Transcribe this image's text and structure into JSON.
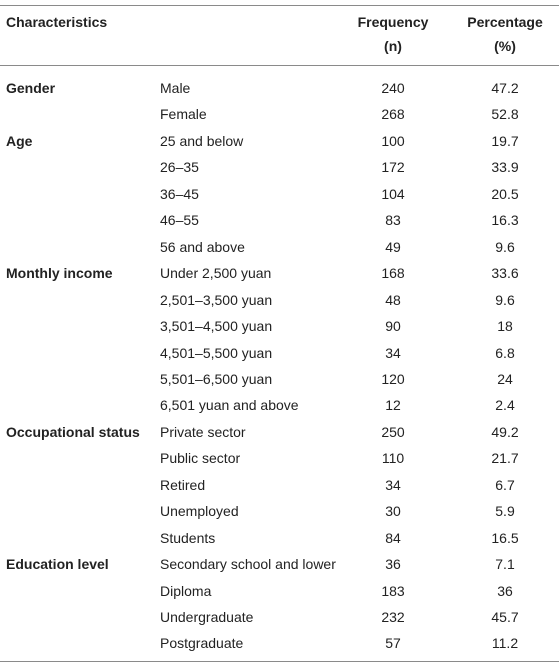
{
  "table": {
    "header": {
      "characteristics": "Characteristics",
      "frequency": [
        "Frequency",
        "(n)"
      ],
      "percentage": [
        "Percentage",
        "(%)"
      ]
    },
    "groups": [
      {
        "name": "Gender",
        "rows": [
          [
            "Male",
            "240",
            "47.2"
          ],
          [
            "Female",
            "268",
            "52.8"
          ]
        ]
      },
      {
        "name": "Age",
        "rows": [
          [
            "25 and below",
            "100",
            "19.7"
          ],
          [
            "26–35",
            "172",
            "33.9"
          ],
          [
            "36–45",
            "104",
            "20.5"
          ],
          [
            "46–55",
            "83",
            "16.3"
          ],
          [
            "56 and above",
            "49",
            "9.6"
          ]
        ]
      },
      {
        "name": "Monthly income",
        "rows": [
          [
            "Under 2,500 yuan",
            "168",
            "33.6"
          ],
          [
            "2,501–3,500 yuan",
            "48",
            "9.6"
          ],
          [
            "3,501–4,500 yuan",
            "90",
            "18"
          ],
          [
            "4,501–5,500 yuan",
            "34",
            "6.8"
          ],
          [
            "5,501–6,500 yuan",
            "120",
            "24"
          ],
          [
            "6,501 yuan and above",
            "12",
            "2.4"
          ]
        ]
      },
      {
        "name": "Occupational status",
        "rows": [
          [
            "Private sector",
            "250",
            "49.2"
          ],
          [
            "Public sector",
            "110",
            "21.7"
          ],
          [
            "Retired",
            "34",
            "6.7"
          ],
          [
            "Unemployed",
            "30",
            "5.9"
          ],
          [
            "Students",
            "84",
            "16.5"
          ]
        ]
      },
      {
        "name": "Education level",
        "rows": [
          [
            "Secondary school and lower",
            "36",
            "7.1"
          ],
          [
            "Diploma",
            "183",
            "36"
          ],
          [
            "Undergraduate",
            "232",
            "45.7"
          ],
          [
            "Postgraduate",
            "57",
            "11.2"
          ]
        ]
      }
    ]
  }
}
